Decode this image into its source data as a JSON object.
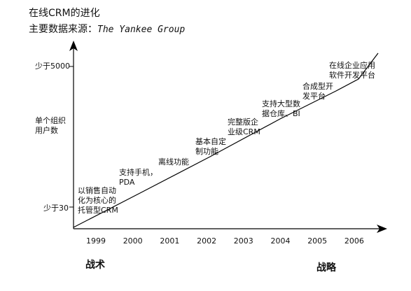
{
  "chart_data": {
    "type": "line",
    "title": "在线CRM的进化",
    "subtitle_prefix": "主要数据来源：",
    "subtitle_source": "The Yankee Group",
    "ylabel": "单个组织\n用户数",
    "y_tick_labels": [
      {
        "label": "少于30",
        "value": 30
      },
      {
        "label": "少于5000",
        "value": 5000
      }
    ],
    "categories": [
      "1999",
      "2000",
      "2001",
      "2002",
      "2003",
      "2004",
      "2005",
      "2006"
    ],
    "x_bottom_labels": {
      "left": "战术",
      "right": "战略"
    },
    "annotations": [
      {
        "year": "1999",
        "text": "以销售自动\n化为核心的\n托管型CRM"
      },
      {
        "year": "2000",
        "text": "支持手机，\nPDA"
      },
      {
        "year": "2001",
        "text": "离线功能"
      },
      {
        "year": "2002",
        "text": "基本自定\n制功能"
      },
      {
        "year": "2003",
        "text": "完整版企\n业级CRM"
      },
      {
        "year": "2004",
        "text": "支持大型数\n据仓库、BI"
      },
      {
        "year": "2005",
        "text": "合成型开\n发平台"
      },
      {
        "year": "2006",
        "text": "在线企业应用\n软件开发平台"
      }
    ],
    "grid": false,
    "legend": "none"
  }
}
